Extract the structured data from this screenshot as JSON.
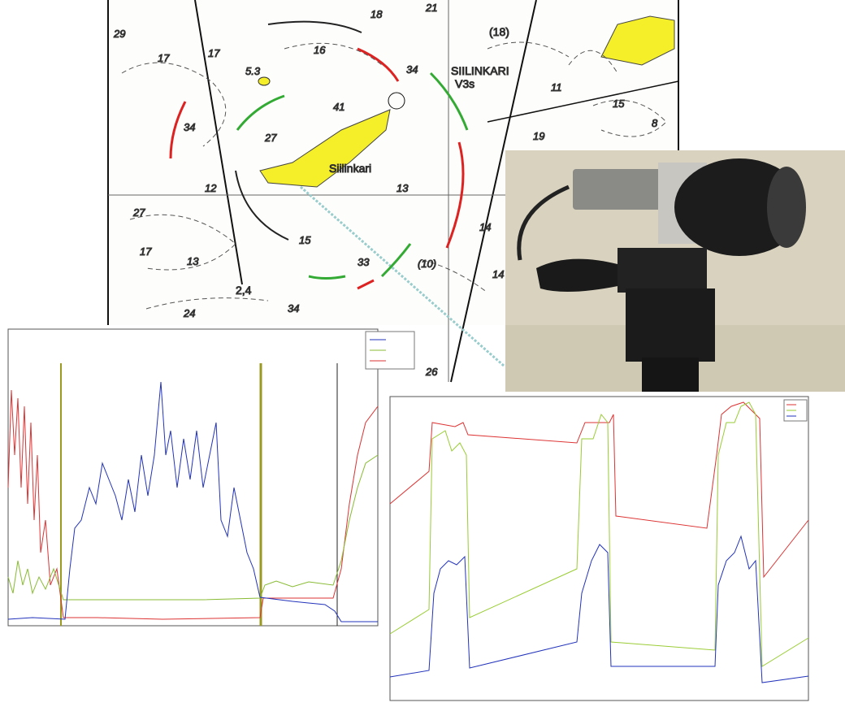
{
  "map": {
    "labels": [
      "29",
      "18",
      "21",
      "(18)",
      "17",
      "17",
      "16",
      "5.3",
      "34",
      "SIILINKARI",
      "V3s",
      "41",
      "34",
      "27",
      "Siilinkari",
      "11",
      "15",
      "8",
      "19",
      "12",
      "13",
      "27",
      "17",
      "13",
      "15",
      "33",
      "(10)",
      "14",
      "14",
      "24",
      "34",
      "2,4",
      "26"
    ]
  }
}
